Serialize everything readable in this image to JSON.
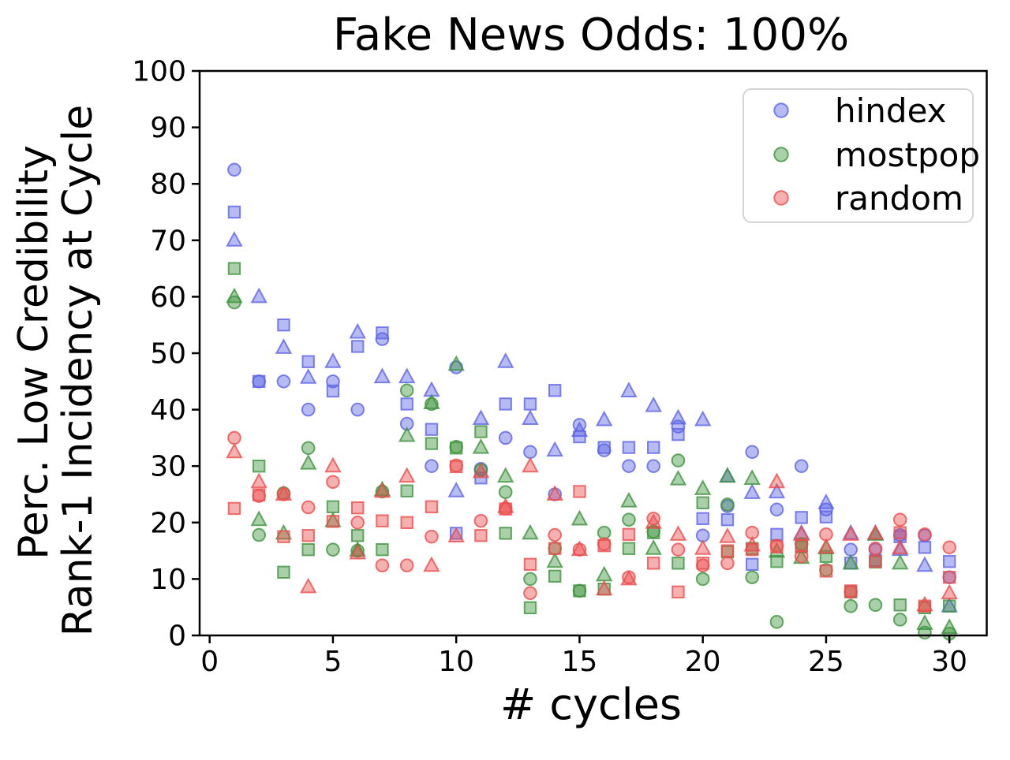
{
  "title": "Fake News Odds: 100%",
  "chart_data": {
    "type": "scatter",
    "title": "Fake News Odds: 100%",
    "xlabel": "# cycles",
    "ylabel_lines": [
      "Perc. Low Credibility",
      "Rank-1 Incidency at Cycle"
    ],
    "xlim": [
      -0.5,
      31.5
    ],
    "ylim": [
      0,
      100
    ],
    "xticks": [
      0,
      5,
      10,
      15,
      20,
      25,
      30
    ],
    "yticks": [
      0,
      10,
      20,
      30,
      40,
      50,
      60,
      70,
      80,
      90,
      100
    ],
    "grid": false,
    "legend_position": "upper right",
    "x": [
      1,
      2,
      3,
      4,
      5,
      6,
      7,
      8,
      9,
      10,
      11,
      12,
      13,
      14,
      15,
      16,
      17,
      18,
      19,
      20,
      21,
      22,
      23,
      24,
      25,
      26,
      27,
      28,
      29,
      30
    ],
    "series": [
      {
        "name": "hindex",
        "color": "#5c64e6",
        "markers": {
          "circle": [
            82.5,
            45,
            45,
            40,
            45,
            40,
            52.5,
            37.5,
            30,
            47.5,
            29.5,
            35,
            32.5,
            25,
            37.3,
            32.8,
            30,
            30,
            37,
            17.7,
            22.9,
            32.5,
            22.3,
            30,
            22.3,
            15.2,
            15.2,
            17.8,
            17.7,
            10.3
          ],
          "square": [
            75,
            45,
            55,
            48.5,
            43.3,
            51.2,
            53.6,
            41,
            36.5,
            18.1,
            27.9,
            41,
            41,
            43.4,
            35.2,
            33.3,
            33.3,
            33.3,
            35.6,
            20.7,
            20.5,
            12.6,
            17.9,
            20.9,
            21,
            12.8,
            13.3,
            17.5,
            15.6,
            13.1
          ],
          "triangle": [
            70,
            60,
            51,
            45.7,
            48.5,
            53.7,
            45.8,
            45.8,
            43.4,
            25.6,
            38.4,
            48.5,
            38.4,
            32.8,
            36.3,
            38.2,
            43.3,
            40.7,
            38.5,
            38.2,
            28.2,
            25.3,
            25.4,
            18.1,
            23.5,
            18.1,
            18,
            15.2,
            12.4,
            5.2
          ]
        }
      },
      {
        "name": "mostpop",
        "color": "#3e943e",
        "markers": {
          "circle": [
            59,
            17.8,
            25.2,
            33.2,
            15.2,
            15,
            25.5,
            43.4,
            41,
            33.4,
            29.3,
            25.4,
            10,
            15.4,
            7.9,
            18.2,
            20.5,
            18.4,
            31,
            10,
            23.2,
            10.3,
            2.4,
            16.2,
            11.6,
            5.2,
            5.4,
            2.8,
            0.5,
            0.3
          ],
          "square": [
            65,
            30,
            11.2,
            15.2,
            22.8,
            17.7,
            15.2,
            25.6,
            34,
            33.2,
            36.1,
            18.1,
            4.9,
            10.5,
            7.9,
            8.2,
            15.4,
            18.2,
            12.8,
            23.5,
            14.8,
            15.4,
            13.1,
            15.7,
            14,
            7.7,
            13,
            5.4,
            4.9,
            5.2
          ],
          "triangle": [
            60,
            20.5,
            18.1,
            30.5,
            20.3,
            15.1,
            25.8,
            35.4,
            41.2,
            48,
            33.3,
            28.2,
            18.1,
            13.1,
            20.6,
            10.7,
            23.8,
            15.4,
            27.7,
            26,
            28.2,
            27.8,
            14.9,
            13.8,
            15.5,
            12.8,
            17.9,
            12.8,
            2.1,
            1.4
          ]
        }
      },
      {
        "name": "random",
        "color": "#ec4c4c",
        "markers": {
          "circle": [
            35,
            24.7,
            25,
            22.7,
            27.2,
            20,
            12.4,
            12.4,
            17.5,
            30.1,
            20.3,
            22.5,
            7.5,
            17.8,
            15.2,
            16.2,
            10.3,
            20.7,
            15.2,
            12.4,
            12.8,
            18.2,
            15.9,
            14,
            17.9,
            7.7,
            15.4,
            20.5,
            17.9,
            15.6
          ],
          "square": [
            22.5,
            24.9,
            17.5,
            17.7,
            20.2,
            22.6,
            20.3,
            20,
            22.8,
            29.9,
            17.7,
            22.4,
            12.6,
            15.4,
            25.5,
            15.9,
            17.9,
            12.8,
            7.7,
            12.8,
            15,
            15.2,
            15.7,
            15.9,
            11.4,
            7.9,
            13.1,
            18.2,
            5.2,
            10.3
          ],
          "triangle": [
            32.5,
            27.2,
            25,
            8.6,
            30,
            14.6,
            25.5,
            28.2,
            12.4,
            17.6,
            29,
            22.8,
            30,
            25,
            15.2,
            8.2,
            10,
            20,
            17.9,
            15.4,
            17.5,
            16,
            27.2,
            17.9,
            15.6,
            17.9,
            18.1,
            15.5,
            5.4,
            7.5
          ]
        }
      }
    ]
  },
  "legend": {
    "entries": [
      {
        "label": "hindex",
        "color": "#5c64e6"
      },
      {
        "label": "mostpop",
        "color": "#3e943e"
      },
      {
        "label": "random",
        "color": "#ec4c4c"
      }
    ]
  }
}
